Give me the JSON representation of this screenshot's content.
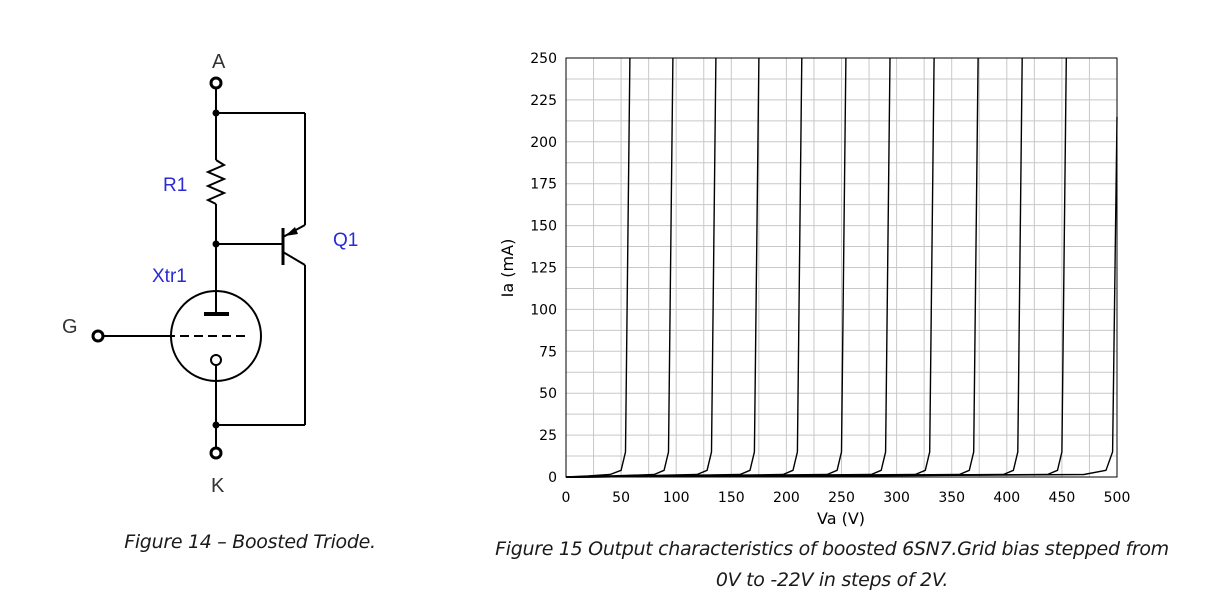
{
  "figure14": {
    "caption": "Figure 14 – Boosted Triode.",
    "labels": {
      "anode": "A",
      "cathode": "K",
      "grid": "G",
      "resistor": "R1",
      "transistor": "Q1",
      "triode": "Xtr1"
    },
    "colors": {
      "component_label": "#2a2ad6",
      "terminal_label": "#333333"
    }
  },
  "figure15": {
    "caption_line1": "Figure 15 Output characteristics of boosted 6SN7.Grid bias stepped from",
    "caption_line2": "0V to -22V in steps of 2V."
  },
  "chart_data": {
    "type": "line",
    "xlabel": "Va (V)",
    "ylabel": "Ia (mA)",
    "xlim": [
      0,
      500
    ],
    "ylim": [
      0,
      250
    ],
    "x_ticks": [
      0,
      50,
      100,
      150,
      200,
      250,
      300,
      350,
      400,
      450,
      500
    ],
    "y_ticks": [
      0,
      25,
      50,
      75,
      100,
      125,
      150,
      175,
      200,
      225,
      250
    ],
    "x_minor_step": 25,
    "y_minor_step": 12.5,
    "grid": true,
    "line_color": "#000000",
    "series": [
      {
        "knee_va": 58,
        "points": [
          [
            0,
            0
          ],
          [
            20,
            0.6
          ],
          [
            40,
            1.5
          ],
          [
            50,
            4
          ],
          [
            54,
            15
          ],
          [
            58,
            250
          ]
        ]
      },
      {
        "knee_va": 97,
        "points": [
          [
            0,
            0
          ],
          [
            40,
            0.6
          ],
          [
            80,
            1.5
          ],
          [
            89,
            4
          ],
          [
            93,
            15
          ],
          [
            97,
            250
          ]
        ]
      },
      {
        "knee_va": 136,
        "points": [
          [
            0,
            0
          ],
          [
            60,
            0.6
          ],
          [
            119,
            1.5
          ],
          [
            128,
            4
          ],
          [
            132,
            15
          ],
          [
            136,
            250
          ]
        ]
      },
      {
        "knee_va": 175,
        "points": [
          [
            0,
            0
          ],
          [
            80,
            0.6
          ],
          [
            158,
            1.5
          ],
          [
            167,
            4
          ],
          [
            171,
            15
          ],
          [
            175,
            250
          ]
        ]
      },
      {
        "knee_va": 214,
        "points": [
          [
            0,
            0
          ],
          [
            100,
            0.6
          ],
          [
            197,
            1.5
          ],
          [
            206,
            4
          ],
          [
            210,
            15
          ],
          [
            214,
            250
          ]
        ]
      },
      {
        "knee_va": 254,
        "points": [
          [
            0,
            0
          ],
          [
            120,
            0.6
          ],
          [
            237,
            1.5
          ],
          [
            246,
            4
          ],
          [
            250,
            15
          ],
          [
            254,
            250
          ]
        ]
      },
      {
        "knee_va": 294,
        "points": [
          [
            0,
            0
          ],
          [
            140,
            0.6
          ],
          [
            277,
            1.5
          ],
          [
            286,
            4
          ],
          [
            290,
            15
          ],
          [
            294,
            250
          ]
        ]
      },
      {
        "knee_va": 334,
        "points": [
          [
            0,
            0
          ],
          [
            160,
            0.6
          ],
          [
            317,
            1.5
          ],
          [
            326,
            4
          ],
          [
            330,
            15
          ],
          [
            334,
            250
          ]
        ]
      },
      {
        "knee_va": 374,
        "points": [
          [
            0,
            0
          ],
          [
            180,
            0.6
          ],
          [
            357,
            1.5
          ],
          [
            366,
            4
          ],
          [
            370,
            15
          ],
          [
            374,
            250
          ]
        ]
      },
      {
        "knee_va": 414,
        "points": [
          [
            0,
            0
          ],
          [
            200,
            0.6
          ],
          [
            397,
            1.5
          ],
          [
            406,
            4
          ],
          [
            410,
            15
          ],
          [
            414,
            250
          ]
        ]
      },
      {
        "knee_va": 454,
        "points": [
          [
            0,
            0
          ],
          [
            220,
            0.6
          ],
          [
            437,
            1.5
          ],
          [
            446,
            4
          ],
          [
            450,
            15
          ],
          [
            454,
            250
          ]
        ]
      },
      {
        "knee_va": 500,
        "points": [
          [
            0,
            0
          ],
          [
            240,
            0.6
          ],
          [
            470,
            1.5
          ],
          [
            490,
            4
          ],
          [
            496,
            15
          ],
          [
            500,
            215
          ]
        ]
      }
    ]
  }
}
